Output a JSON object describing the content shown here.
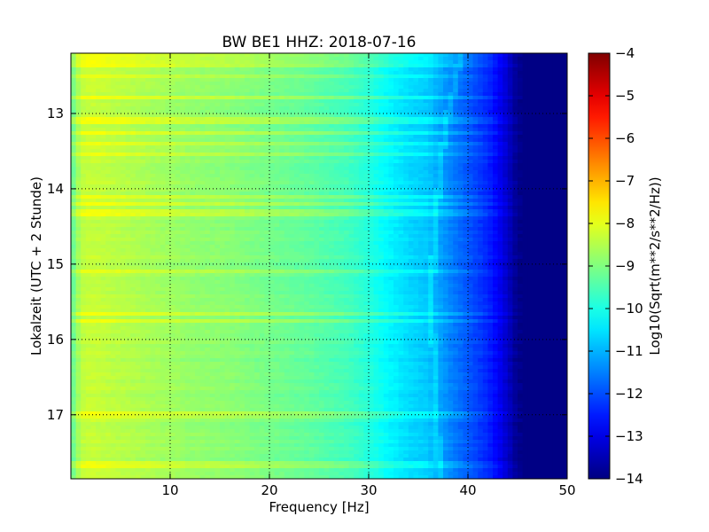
{
  "chart_data": {
    "type": "heatmap",
    "title": "BW BE1 HHZ: 2018-07-16",
    "xlabel": "Frequency [Hz]",
    "ylabel": "Lokalzeit (UTC + 2 Stunde)",
    "xlim": [
      0,
      50
    ],
    "ylim": [
      12.2,
      17.85
    ],
    "y_inverted": true,
    "x_ticks": [
      10,
      20,
      30,
      40,
      50
    ],
    "x_tick_labels": [
      "10",
      "20",
      "30",
      "40",
      "50"
    ],
    "y_ticks": [
      13,
      14,
      15,
      16,
      17
    ],
    "y_tick_labels": [
      "13",
      "14",
      "15",
      "16",
      "17"
    ],
    "grid": true,
    "colormap": "jet",
    "colorbar": {
      "label": "Log10(Sqrt(m**2/s**2/Hz))",
      "range": [
        -14,
        -4
      ],
      "ticks": [
        -4,
        -5,
        -6,
        -7,
        -8,
        -9,
        -10,
        -11,
        -12,
        -13,
        -14
      ],
      "tick_labels": [
        "−4",
        "−5",
        "−6",
        "−7",
        "−8",
        "−9",
        "−10",
        "−11",
        "−12",
        "−13",
        "−14"
      ]
    },
    "spectral_profile": {
      "frequency_hz": [
        0,
        1,
        2,
        4,
        8,
        12,
        16,
        20,
        24,
        28,
        30,
        32,
        34,
        36,
        38,
        40,
        42,
        43,
        44,
        45,
        50
      ],
      "log10_amplitude": [
        -9.4,
        -8.4,
        -8.3,
        -8.4,
        -8.6,
        -8.8,
        -8.9,
        -9.1,
        -9.3,
        -9.6,
        -9.9,
        -10.3,
        -10.6,
        -10.8,
        -11.4,
        -11.9,
        -12.4,
        -12.8,
        -13.3,
        -13.9,
        -13.95
      ]
    },
    "high_energy_times": [
      12.25,
      12.35,
      12.5,
      12.78,
      13.1,
      13.25,
      13.4,
      13.55,
      14.1,
      14.2,
      14.3,
      14.35,
      15.1,
      15.65,
      15.75,
      17.0,
      17.65
    ],
    "spectral_line_hz": [
      [
        12.2,
        39.2
      ],
      [
        12.6,
        38.8
      ],
      [
        13.0,
        38.0
      ],
      [
        13.4,
        37.5
      ],
      [
        13.8,
        37.2
      ],
      [
        14.2,
        36.9
      ],
      [
        14.6,
        36.7
      ],
      [
        15.0,
        36.5
      ],
      [
        15.4,
        36.3
      ],
      [
        15.8,
        36.4
      ],
      [
        16.2,
        36.6
      ],
      [
        16.6,
        36.7
      ],
      [
        17.0,
        36.8
      ],
      [
        17.4,
        37.0
      ],
      [
        17.85,
        37.1
      ]
    ]
  }
}
